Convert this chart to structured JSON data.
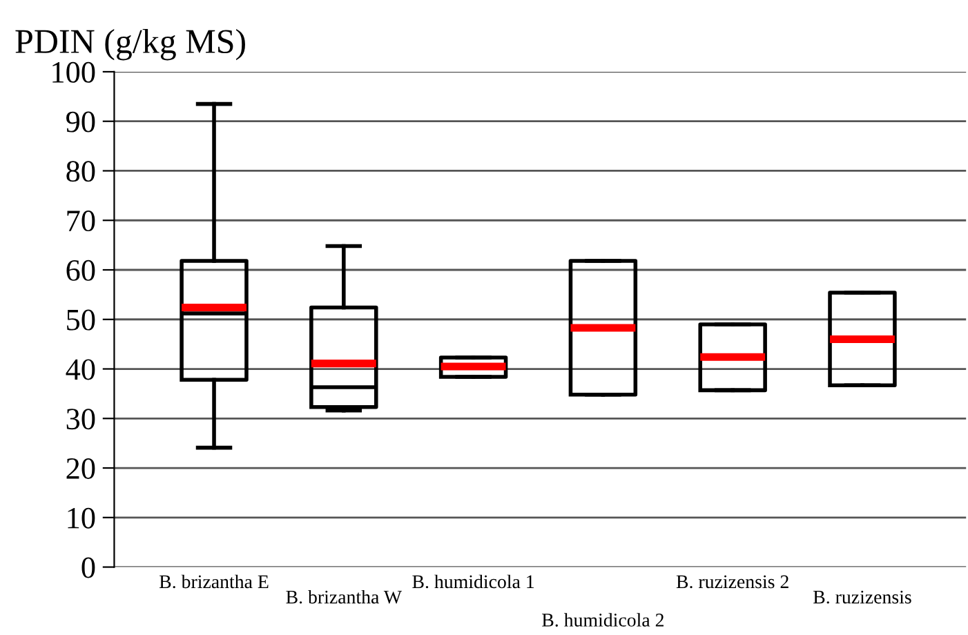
{
  "chart_data": {
    "type": "box",
    "ylabel": "PDIN (g/kg MS)",
    "categories": [
      "B. brizantha E",
      "B. brizantha W",
      "B. humidicola 1",
      "B. humidicola 2",
      "B. ruzizensis 2",
      "B. ruzizensis"
    ],
    "boxes": [
      {
        "low": 24.1,
        "q1": 37.8,
        "median": 51.2,
        "q3": 61.8,
        "high": 93.5,
        "mean": 52.4
      },
      {
        "low": 31.6,
        "q1": 32.3,
        "median": 36.3,
        "q3": 52.4,
        "high": 64.8,
        "mean": 41.1
      },
      {
        "low": 38.4,
        "q1": 38.4,
        "median": 40.5,
        "q3": 42.3,
        "high": 42.3,
        "mean": 40.5
      },
      {
        "low": 34.8,
        "q1": 34.8,
        "median": 48.3,
        "q3": 61.8,
        "high": 61.8,
        "mean": 48.3
      },
      {
        "low": 35.7,
        "q1": 35.7,
        "median": 42.4,
        "q3": 49.0,
        "high": 49.0,
        "mean": 42.4
      },
      {
        "low": 36.7,
        "q1": 36.7,
        "median": 46.0,
        "q3": 55.4,
        "high": 55.4,
        "mean": 46.0
      }
    ],
    "ylim": [
      0,
      100
    ],
    "yticks": [
      0,
      10,
      20,
      30,
      40,
      50,
      60,
      70,
      80,
      90,
      100
    ],
    "grid": "y",
    "legend": false
  }
}
